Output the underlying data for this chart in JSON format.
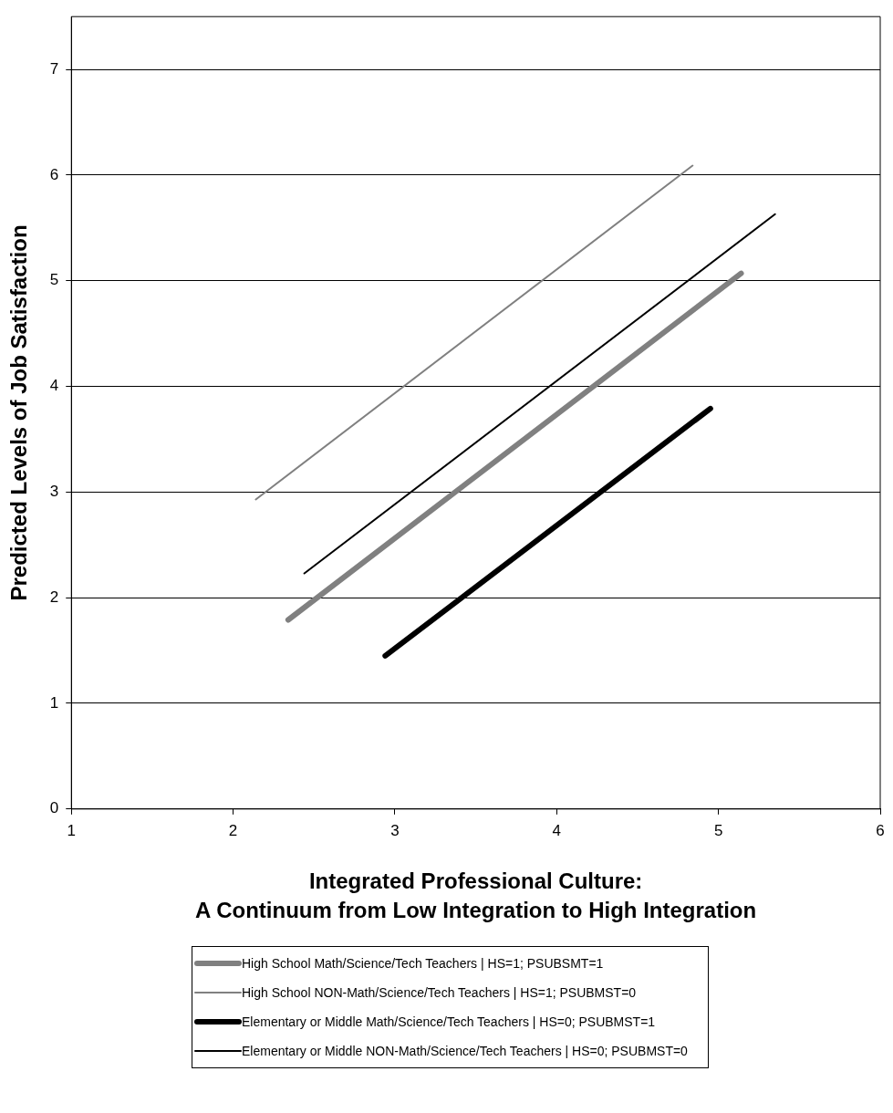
{
  "chart_data": {
    "type": "line",
    "xlabel": "Integrated Professional Culture:\nA Continuum from Low Integration to High Integration",
    "ylabel": "Predicted Levels of Job Satisfaction",
    "xlim": [
      1,
      6
    ],
    "xticks": [
      1,
      2,
      3,
      4,
      5,
      6
    ],
    "ylim": [
      0,
      7.5
    ],
    "yticks": [
      0,
      1,
      2,
      3,
      4,
      5,
      6,
      7
    ],
    "grid": "y",
    "legend": "bottom",
    "marker": "none",
    "line_style": "solid",
    "series": [
      {
        "name": "High School Math/Science/Tech Teachers | HS=1; PSUBSMT=1",
        "color": "#808080",
        "x": [
          2.34,
          5.14
        ],
        "values": [
          1.79,
          5.07
        ]
      },
      {
        "name": "High School NON-Math/Science/Tech Teachers | HS=1; PSUBMST=0",
        "color": "#808080",
        "x": [
          2.14,
          4.84
        ],
        "values": [
          2.93,
          6.09
        ]
      },
      {
        "name": "Elementary or Middle Math/Science/Tech Teachers | HS=0; PSUBMST=1",
        "color": "#000000",
        "x": [
          2.94,
          4.95
        ],
        "values": [
          1.45,
          3.79
        ]
      },
      {
        "name": "Elementary or Middle NON-Math/Science/Tech Teachers | HS=0; PSUBMST=0",
        "color": "#000000",
        "x": [
          2.44,
          5.35
        ],
        "values": [
          2.23,
          5.63
        ]
      }
    ]
  }
}
